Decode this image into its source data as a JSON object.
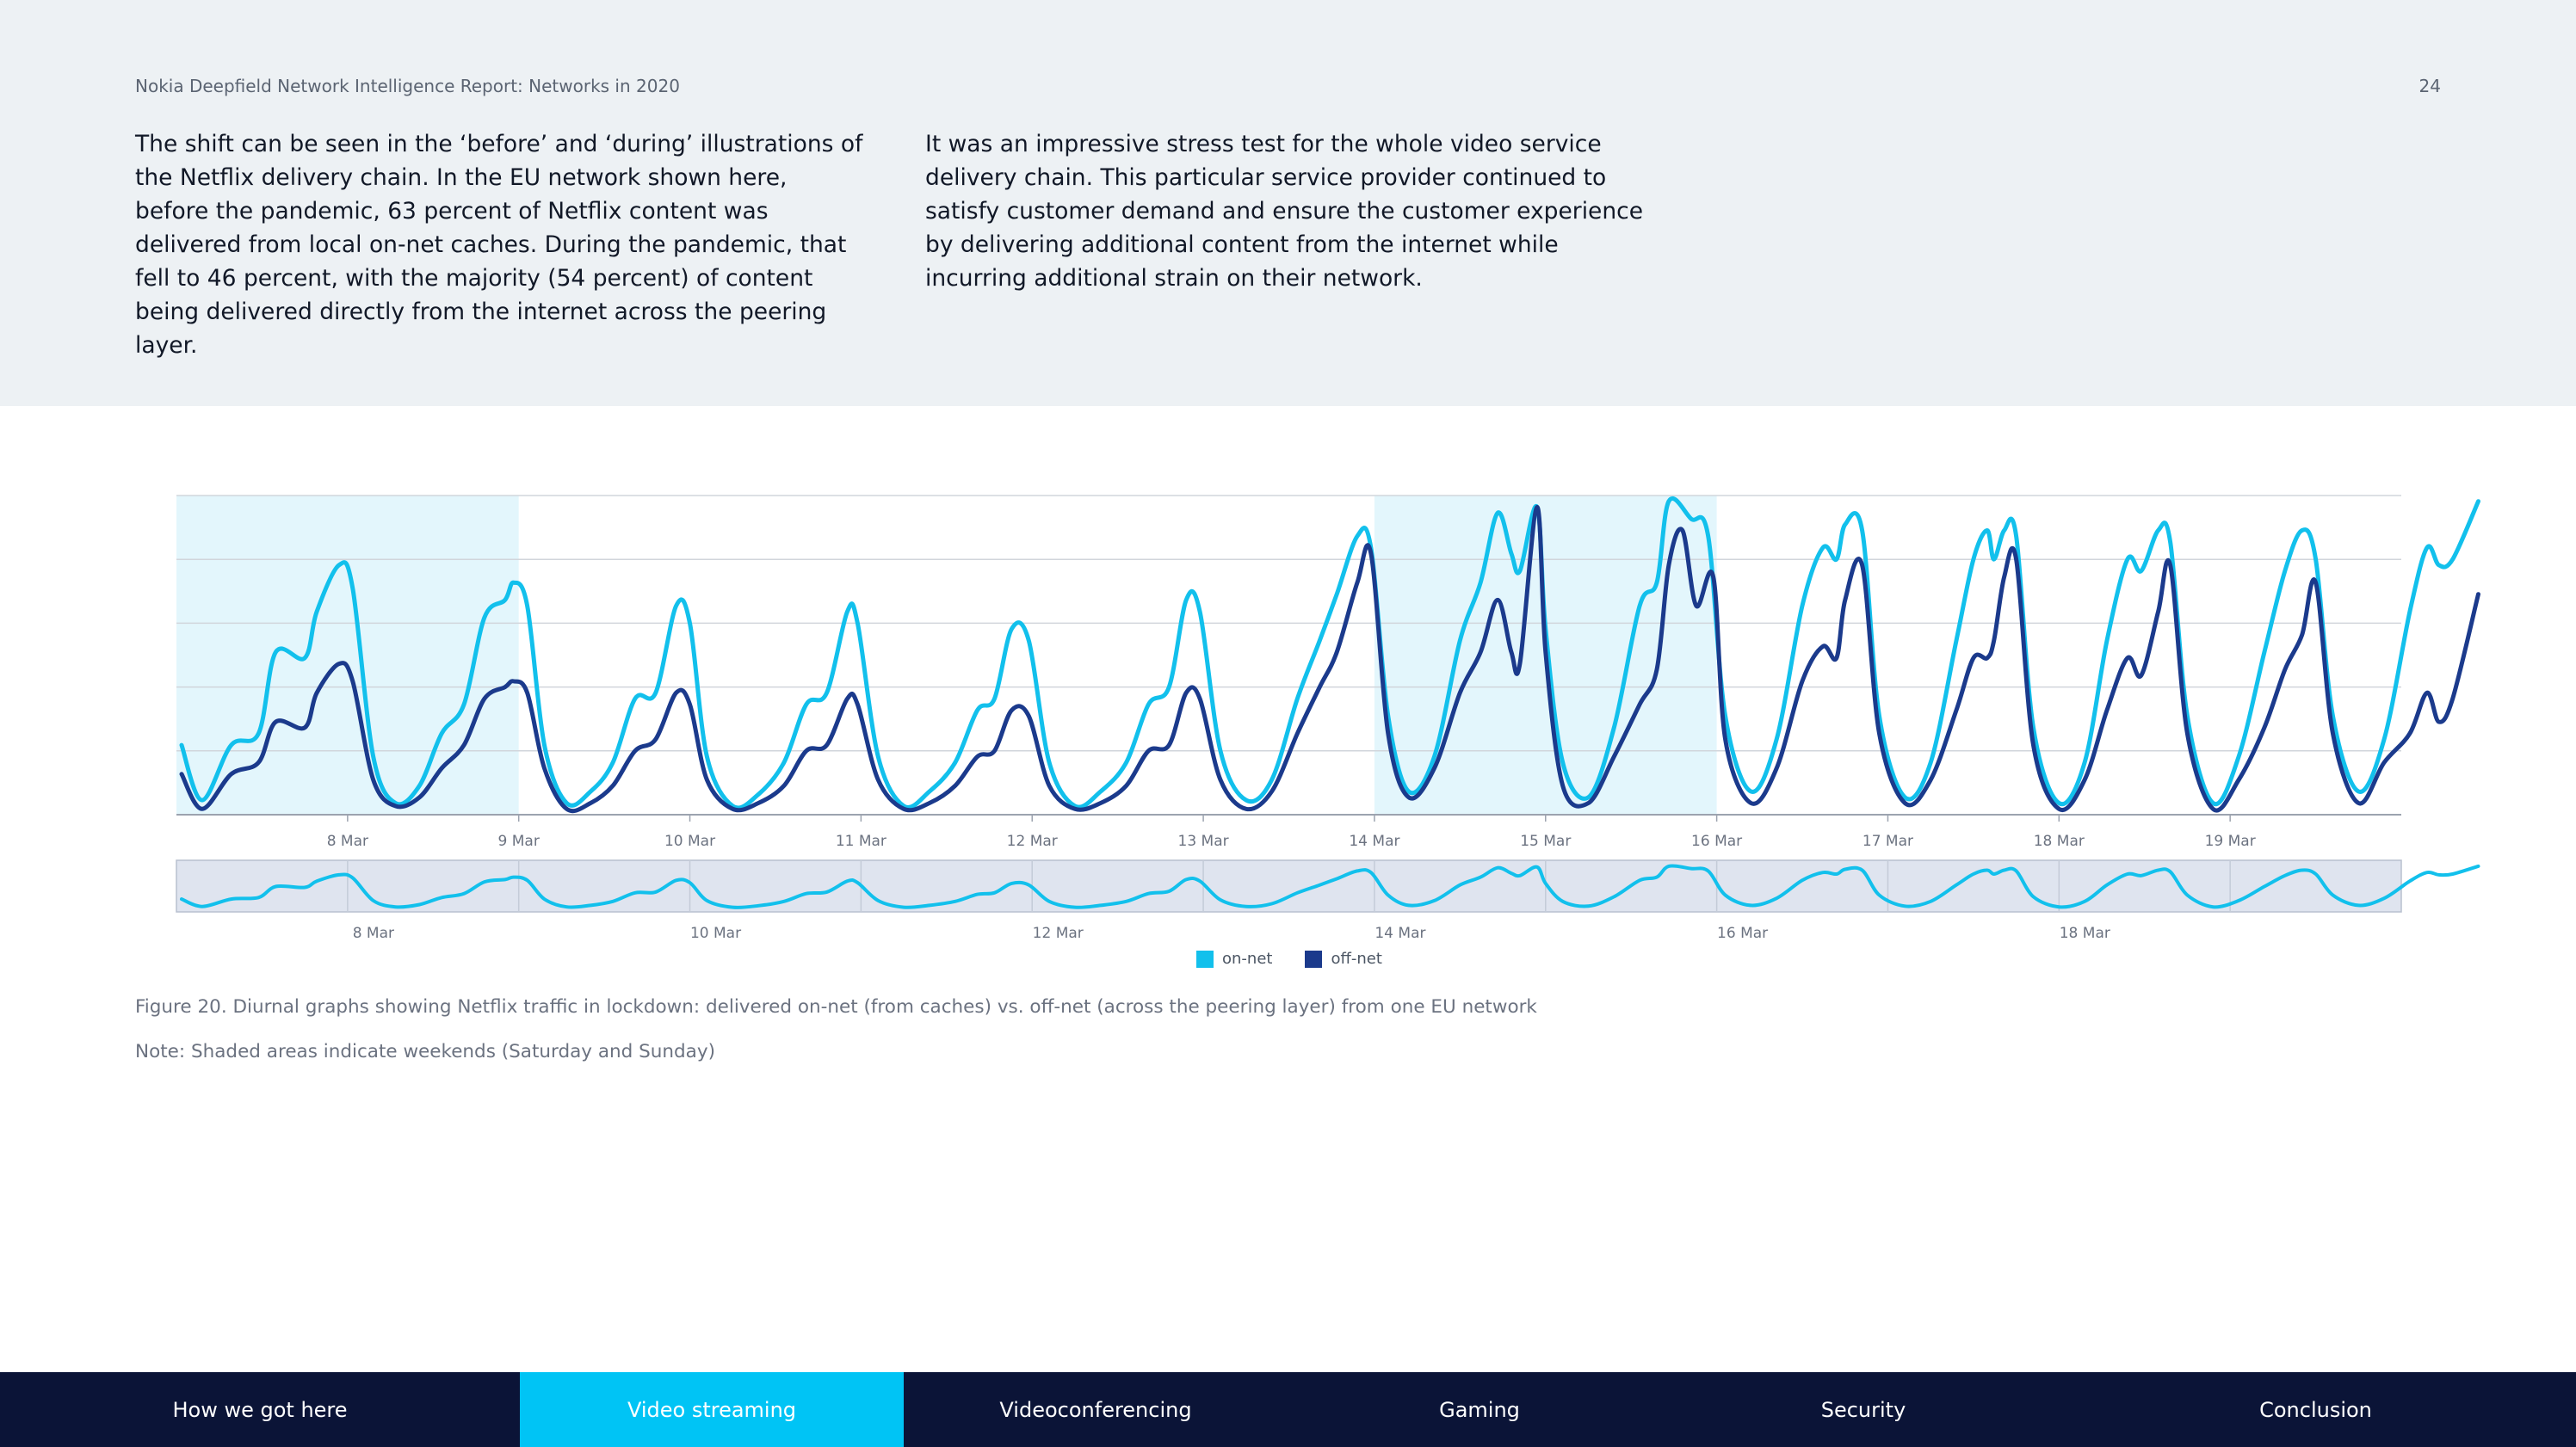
{
  "header": {
    "report_title": "Nokia Deepfield Network Intelligence Report: Networks in 2020",
    "page_number": "24"
  },
  "intro": {
    "left_paragraph": "The shift can be seen in the ‘before’ and ‘during’ illustrations of the Netflix delivery chain. In the EU network shown here, before the pandemic, 63 percent of Netflix content was delivered from local on-net caches. During the pandemic, that fell to 46 percent, with the majority (54 percent) of content being delivered directly from the internet across the peering layer.",
    "right_paragraph": "It was an impressive stress test for the whole video service delivery chain. This particular service provider continued to satisfy customer demand and ensure the customer experience by delivering additional content from the internet while incurring additional strain on their network."
  },
  "chart_data": {
    "type": "line",
    "title": "Diurnal graphs showing Netflix traffic in lockdown",
    "xlabel": "",
    "ylabel": "",
    "x_range_days": [
      7,
      20
    ],
    "ylim": [
      0,
      100
    ],
    "grid": true,
    "legend_position": "bottom-center",
    "weekend_shading": [
      [
        7.0,
        9.0
      ],
      [
        14.0,
        16.0
      ]
    ],
    "main_ticks": [
      {
        "day": 8,
        "label": "8 Mar"
      },
      {
        "day": 9,
        "label": "9 Mar"
      },
      {
        "day": 10,
        "label": "10 Mar"
      },
      {
        "day": 11,
        "label": "11 Mar"
      },
      {
        "day": 12,
        "label": "12 Mar"
      },
      {
        "day": 13,
        "label": "13 Mar"
      },
      {
        "day": 14,
        "label": "14 Mar"
      },
      {
        "day": 15,
        "label": "15 Mar"
      },
      {
        "day": 16,
        "label": "16 Mar"
      },
      {
        "day": 17,
        "label": "17 Mar"
      },
      {
        "day": 18,
        "label": "18 Mar"
      },
      {
        "day": 19,
        "label": "19 Mar"
      }
    ],
    "navigator_ticks": [
      {
        "day": 8,
        "label": "8 Mar"
      },
      {
        "day": 10,
        "label": "10 Mar"
      },
      {
        "day": 12,
        "label": "12 Mar"
      },
      {
        "day": 14,
        "label": "14 Mar"
      },
      {
        "day": 16,
        "label": "16 Mar"
      },
      {
        "day": 18,
        "label": "18 Mar"
      }
    ],
    "series": [
      {
        "name": "on-net",
        "color": "#12c0ec",
        "points": [
          [
            7.03,
            24
          ],
          [
            7.15,
            5
          ],
          [
            7.32,
            24
          ],
          [
            7.48,
            28
          ],
          [
            7.58,
            56
          ],
          [
            7.75,
            54
          ],
          [
            7.82,
            70
          ],
          [
            7.95,
            86
          ],
          [
            8.03,
            78
          ],
          [
            8.15,
            20
          ],
          [
            8.28,
            4
          ],
          [
            8.42,
            10
          ],
          [
            8.55,
            28
          ],
          [
            8.68,
            38
          ],
          [
            8.8,
            68
          ],
          [
            8.92,
            74
          ],
          [
            8.97,
            80
          ],
          [
            9.05,
            72
          ],
          [
            9.15,
            24
          ],
          [
            9.28,
            4
          ],
          [
            9.42,
            8
          ],
          [
            9.55,
            18
          ],
          [
            9.68,
            40
          ],
          [
            9.8,
            42
          ],
          [
            9.92,
            72
          ],
          [
            10.0,
            66
          ],
          [
            10.1,
            20
          ],
          [
            10.25,
            3
          ],
          [
            10.4,
            7
          ],
          [
            10.55,
            18
          ],
          [
            10.68,
            38
          ],
          [
            10.8,
            42
          ],
          [
            10.92,
            70
          ],
          [
            10.98,
            66
          ],
          [
            11.1,
            20
          ],
          [
            11.25,
            3
          ],
          [
            11.4,
            8
          ],
          [
            11.55,
            18
          ],
          [
            11.68,
            36
          ],
          [
            11.78,
            40
          ],
          [
            11.88,
            64
          ],
          [
            11.98,
            60
          ],
          [
            12.1,
            18
          ],
          [
            12.25,
            3
          ],
          [
            12.4,
            8
          ],
          [
            12.55,
            18
          ],
          [
            12.68,
            38
          ],
          [
            12.8,
            44
          ],
          [
            12.9,
            74
          ],
          [
            12.98,
            70
          ],
          [
            13.1,
            22
          ],
          [
            13.25,
            5
          ],
          [
            13.4,
            12
          ],
          [
            13.55,
            40
          ],
          [
            13.68,
            60
          ],
          [
            13.78,
            76
          ],
          [
            13.9,
            96
          ],
          [
            13.98,
            92
          ],
          [
            14.08,
            34
          ],
          [
            14.2,
            8
          ],
          [
            14.35,
            20
          ],
          [
            14.5,
            60
          ],
          [
            14.62,
            80
          ],
          [
            14.72,
            104
          ],
          [
            14.8,
            90
          ],
          [
            14.85,
            84
          ],
          [
            14.95,
            106
          ],
          [
            15.0,
            64
          ],
          [
            15.1,
            18
          ],
          [
            15.25,
            6
          ],
          [
            15.4,
            30
          ],
          [
            15.55,
            72
          ],
          [
            15.65,
            80
          ],
          [
            15.72,
            108
          ],
          [
            15.85,
            102
          ],
          [
            15.95,
            96
          ],
          [
            16.05,
            34
          ],
          [
            16.2,
            8
          ],
          [
            16.35,
            26
          ],
          [
            16.5,
            72
          ],
          [
            16.62,
            92
          ],
          [
            16.7,
            88
          ],
          [
            16.75,
            100
          ],
          [
            16.85,
            98
          ],
          [
            16.95,
            34
          ],
          [
            17.1,
            6
          ],
          [
            17.25,
            18
          ],
          [
            17.4,
            60
          ],
          [
            17.5,
            88
          ],
          [
            17.58,
            98
          ],
          [
            17.62,
            88
          ],
          [
            17.68,
            98
          ],
          [
            17.75,
            96
          ],
          [
            17.85,
            30
          ],
          [
            18.0,
            4
          ],
          [
            18.15,
            18
          ],
          [
            18.28,
            60
          ],
          [
            18.4,
            88
          ],
          [
            18.48,
            84
          ],
          [
            18.58,
            98
          ],
          [
            18.65,
            94
          ],
          [
            18.75,
            34
          ],
          [
            18.9,
            4
          ],
          [
            19.05,
            20
          ],
          [
            19.2,
            56
          ],
          [
            19.32,
            84
          ],
          [
            19.42,
            98
          ],
          [
            19.5,
            88
          ],
          [
            19.6,
            34
          ],
          [
            19.75,
            8
          ],
          [
            19.9,
            26
          ],
          [
            20.05,
            70
          ],
          [
            20.15,
            92
          ],
          [
            20.22,
            86
          ],
          [
            20.3,
            88
          ],
          [
            20.45,
            108
          ]
        ]
      },
      {
        "name": "off-net",
        "color": "#1b3a8c",
        "points": [
          [
            7.03,
            14
          ],
          [
            7.15,
            2
          ],
          [
            7.32,
            14
          ],
          [
            7.48,
            18
          ],
          [
            7.58,
            32
          ],
          [
            7.75,
            30
          ],
          [
            7.82,
            42
          ],
          [
            7.95,
            52
          ],
          [
            8.03,
            46
          ],
          [
            8.15,
            12
          ],
          [
            8.28,
            3
          ],
          [
            8.42,
            6
          ],
          [
            8.55,
            16
          ],
          [
            8.68,
            24
          ],
          [
            8.8,
            40
          ],
          [
            8.92,
            44
          ],
          [
            8.97,
            46
          ],
          [
            9.05,
            42
          ],
          [
            9.15,
            16
          ],
          [
            9.28,
            2
          ],
          [
            9.42,
            4
          ],
          [
            9.55,
            10
          ],
          [
            9.68,
            22
          ],
          [
            9.8,
            26
          ],
          [
            9.92,
            42
          ],
          [
            10.0,
            38
          ],
          [
            10.1,
            12
          ],
          [
            10.25,
            2
          ],
          [
            10.4,
            4
          ],
          [
            10.55,
            10
          ],
          [
            10.68,
            22
          ],
          [
            10.8,
            24
          ],
          [
            10.92,
            40
          ],
          [
            10.98,
            38
          ],
          [
            11.1,
            12
          ],
          [
            11.25,
            2
          ],
          [
            11.4,
            4
          ],
          [
            11.55,
            10
          ],
          [
            11.68,
            20
          ],
          [
            11.78,
            22
          ],
          [
            11.88,
            36
          ],
          [
            11.98,
            34
          ],
          [
            12.1,
            10
          ],
          [
            12.25,
            2
          ],
          [
            12.4,
            4
          ],
          [
            12.55,
            10
          ],
          [
            12.68,
            22
          ],
          [
            12.8,
            24
          ],
          [
            12.9,
            42
          ],
          [
            12.98,
            40
          ],
          [
            13.1,
            12
          ],
          [
            13.25,
            2
          ],
          [
            13.4,
            8
          ],
          [
            13.55,
            28
          ],
          [
            13.68,
            44
          ],
          [
            13.78,
            56
          ],
          [
            13.9,
            80
          ],
          [
            13.98,
            90
          ],
          [
            14.08,
            28
          ],
          [
            14.2,
            6
          ],
          [
            14.35,
            16
          ],
          [
            14.5,
            42
          ],
          [
            14.62,
            56
          ],
          [
            14.72,
            74
          ],
          [
            14.8,
            56
          ],
          [
            14.85,
            52
          ],
          [
            14.95,
            106
          ],
          [
            15.0,
            56
          ],
          [
            15.1,
            10
          ],
          [
            15.25,
            4
          ],
          [
            15.4,
            20
          ],
          [
            15.55,
            38
          ],
          [
            15.65,
            50
          ],
          [
            15.72,
            86
          ],
          [
            15.8,
            98
          ],
          [
            15.88,
            72
          ],
          [
            15.98,
            82
          ],
          [
            16.05,
            26
          ],
          [
            16.2,
            4
          ],
          [
            16.35,
            16
          ],
          [
            16.5,
            46
          ],
          [
            16.62,
            58
          ],
          [
            16.7,
            54
          ],
          [
            16.75,
            74
          ],
          [
            16.85,
            86
          ],
          [
            16.95,
            28
          ],
          [
            17.1,
            4
          ],
          [
            17.25,
            12
          ],
          [
            17.4,
            36
          ],
          [
            17.5,
            54
          ],
          [
            17.58,
            54
          ],
          [
            17.62,
            60
          ],
          [
            17.68,
            82
          ],
          [
            17.75,
            88
          ],
          [
            17.85,
            24
          ],
          [
            18.0,
            2
          ],
          [
            18.15,
            12
          ],
          [
            18.28,
            36
          ],
          [
            18.4,
            54
          ],
          [
            18.48,
            48
          ],
          [
            18.58,
            70
          ],
          [
            18.65,
            86
          ],
          [
            18.75,
            28
          ],
          [
            18.9,
            2
          ],
          [
            19.05,
            12
          ],
          [
            19.2,
            30
          ],
          [
            19.32,
            50
          ],
          [
            19.42,
            62
          ],
          [
            19.5,
            80
          ],
          [
            19.6,
            28
          ],
          [
            19.75,
            4
          ],
          [
            19.9,
            18
          ],
          [
            20.05,
            28
          ],
          [
            20.15,
            42
          ],
          [
            20.22,
            32
          ],
          [
            20.3,
            40
          ],
          [
            20.45,
            76
          ]
        ]
      }
    ]
  },
  "legend": {
    "on_net_label": "on-net",
    "off_net_label": "off-net",
    "on_net_color": "#12c0ec",
    "off_net_color": "#1b3a8c"
  },
  "captions": {
    "figure": "Figure 20. Diurnal graphs showing Netflix traffic in lockdown: delivered on-net (from caches) vs. off-net (across the peering layer) from one EU network",
    "note": "Note: Shaded areas indicate weekends (Saturday and Sunday)"
  },
  "nav": {
    "tabs": [
      {
        "label": "How we got here",
        "active": false
      },
      {
        "label": "Video streaming",
        "active": true
      },
      {
        "label": "Videoconferencing",
        "active": false
      },
      {
        "label": "Gaming",
        "active": false
      },
      {
        "label": "Security",
        "active": false
      },
      {
        "label": "Conclusion",
        "active": false
      }
    ]
  }
}
